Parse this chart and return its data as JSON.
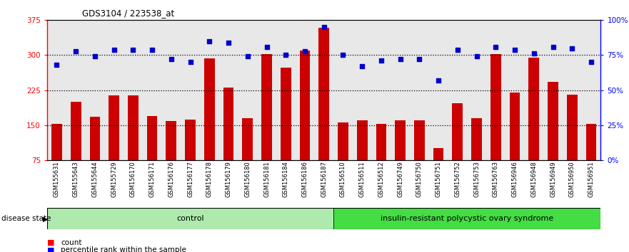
{
  "title": "GDS3104 / 223538_at",
  "samples": [
    "GSM155631",
    "GSM155643",
    "GSM155644",
    "GSM155729",
    "GSM156170",
    "GSM156171",
    "GSM156176",
    "GSM156177",
    "GSM156178",
    "GSM156179",
    "GSM156180",
    "GSM156181",
    "GSM156184",
    "GSM156186",
    "GSM156187",
    "GSM156510",
    "GSM156511",
    "GSM156512",
    "GSM156749",
    "GSM156750",
    "GSM156751",
    "GSM156752",
    "GSM156753",
    "GSM156763",
    "GSM156946",
    "GSM156948",
    "GSM156949",
    "GSM156950",
    "GSM156951"
  ],
  "counts": [
    152,
    200,
    168,
    213,
    213,
    170,
    158,
    161,
    293,
    230,
    165,
    302,
    273,
    310,
    358,
    155,
    160,
    152,
    160,
    160,
    100,
    197,
    165,
    302,
    220,
    295,
    243,
    215,
    152
  ],
  "percentile_ranks": [
    68,
    78,
    74,
    79,
    79,
    79,
    72,
    70,
    85,
    84,
    74,
    81,
    75,
    78,
    95,
    75,
    67,
    71,
    72,
    72,
    57,
    79,
    74,
    81,
    79,
    76,
    81,
    80,
    70
  ],
  "n_control": 15,
  "group_labels": [
    "control",
    "insulin-resistant polycystic ovary syndrome"
  ],
  "group_colors": [
    "#aeeaae",
    "#44dd44"
  ],
  "bar_color": "#cc0000",
  "dot_color": "#0000cc",
  "ylim_left": [
    75,
    375
  ],
  "yticks_left": [
    75,
    150,
    225,
    300,
    375
  ],
  "ylim_right": [
    0,
    100
  ],
  "yticks_right": [
    0,
    25,
    50,
    75,
    100
  ],
  "hlines": [
    150,
    225,
    300
  ],
  "background_color": "#ffffff",
  "plot_bg_color": "#e8e8e8"
}
